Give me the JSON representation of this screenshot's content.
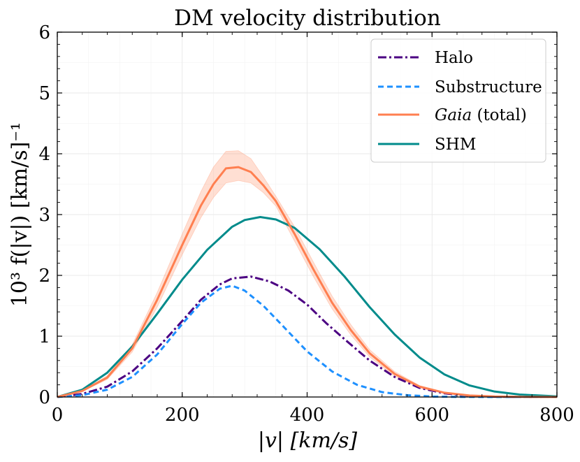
{
  "chart_data": {
    "type": "line",
    "title": "DM velocity distribution",
    "xlabel": "|v| [km/s]",
    "ylabel": "10³ f(|v|) [km/s]⁻¹",
    "xlim": [
      0,
      800
    ],
    "ylim": [
      0,
      6
    ],
    "xticks": [
      "0",
      "200",
      "400",
      "600",
      "800"
    ],
    "yticks": [
      "0",
      "1",
      "2",
      "3",
      "4",
      "5",
      "6"
    ],
    "grid": true,
    "legend_position": "top-right",
    "series": [
      {
        "name": "Halo",
        "style": "dashdot",
        "color": "#4b0082",
        "x": [
          0,
          40,
          80,
          120,
          160,
          200,
          230,
          260,
          280,
          310,
          340,
          370,
          400,
          430,
          460,
          500,
          540,
          580,
          620,
          660,
          700,
          750,
          800
        ],
        "values": [
          0.0,
          0.05,
          0.17,
          0.42,
          0.8,
          1.25,
          1.6,
          1.85,
          1.95,
          1.98,
          1.9,
          1.75,
          1.52,
          1.22,
          0.95,
          0.6,
          0.33,
          0.15,
          0.06,
          0.02,
          0.005,
          0.0,
          0.0
        ]
      },
      {
        "name": "Substructure",
        "style": "dashed",
        "color": "#1e90ff",
        "x": [
          0,
          40,
          80,
          120,
          160,
          200,
          230,
          260,
          280,
          300,
          330,
          360,
          400,
          440,
          480,
          520,
          560,
          600,
          640,
          700,
          800
        ],
        "values": [
          0.0,
          0.03,
          0.12,
          0.33,
          0.7,
          1.2,
          1.55,
          1.78,
          1.83,
          1.75,
          1.5,
          1.18,
          0.75,
          0.42,
          0.2,
          0.08,
          0.03,
          0.008,
          0.002,
          0.0,
          0.0
        ]
      },
      {
        "name": "Gaia (total)",
        "style": "solid",
        "color": "#ff7f50",
        "x": [
          0,
          40,
          80,
          120,
          160,
          200,
          230,
          250,
          270,
          290,
          310,
          330,
          350,
          380,
          410,
          440,
          470,
          500,
          540,
          580,
          620,
          660,
          700,
          750,
          800
        ],
        "values": [
          0.0,
          0.1,
          0.32,
          0.8,
          1.6,
          2.5,
          3.15,
          3.5,
          3.76,
          3.78,
          3.7,
          3.48,
          3.22,
          2.68,
          2.1,
          1.55,
          1.1,
          0.72,
          0.38,
          0.17,
          0.07,
          0.025,
          0.008,
          0.002,
          0.0
        ],
        "band_upper": [
          0.0,
          0.11,
          0.35,
          0.86,
          1.72,
          2.68,
          3.38,
          3.78,
          4.04,
          4.05,
          3.92,
          3.62,
          3.3,
          2.8,
          2.22,
          1.66,
          1.19,
          0.78,
          0.42,
          0.19,
          0.08,
          0.03,
          0.01,
          0.003,
          0.0
        ],
        "band_lower": [
          0.0,
          0.09,
          0.29,
          0.74,
          1.48,
          2.34,
          2.95,
          3.28,
          3.52,
          3.56,
          3.52,
          3.36,
          3.14,
          2.56,
          1.98,
          1.45,
          1.02,
          0.66,
          0.34,
          0.15,
          0.06,
          0.02,
          0.006,
          0.001,
          0.0
        ]
      },
      {
        "name": "SHM",
        "style": "solid",
        "color": "#008b8b",
        "x": [
          0,
          40,
          80,
          120,
          160,
          200,
          240,
          280,
          300,
          325,
          350,
          380,
          420,
          460,
          500,
          540,
          580,
          620,
          660,
          700,
          740,
          800
        ],
        "values": [
          0.0,
          0.12,
          0.4,
          0.83,
          1.37,
          1.93,
          2.42,
          2.8,
          2.91,
          2.96,
          2.92,
          2.78,
          2.43,
          1.98,
          1.48,
          1.03,
          0.65,
          0.37,
          0.19,
          0.09,
          0.04,
          0.01
        ]
      }
    ],
    "legend": [
      {
        "label_main": "Halo",
        "label_italic": "",
        "label_rest": ""
      },
      {
        "label_main": "Substructure",
        "label_italic": "",
        "label_rest": ""
      },
      {
        "label_main": "",
        "label_italic": "Gaia",
        "label_rest": " (total)"
      },
      {
        "label_main": "SHM",
        "label_italic": "",
        "label_rest": ""
      }
    ]
  }
}
